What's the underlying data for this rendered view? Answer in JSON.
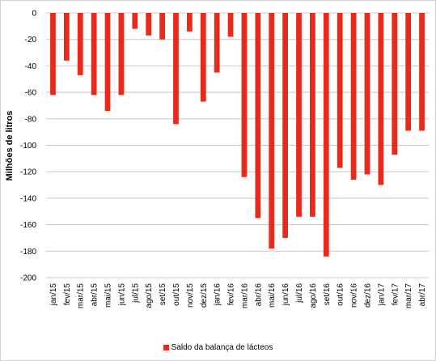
{
  "chart_data": {
    "type": "bar",
    "ylabel": "Milhões de litros",
    "xlabel": "",
    "ylim": [
      -200,
      0
    ],
    "yticks": [
      0,
      -20,
      -40,
      -60,
      -80,
      -100,
      -120,
      -140,
      -160,
      -180,
      -200
    ],
    "grid": true,
    "legend_position": "bottom",
    "bar_color": "#e8291c",
    "categories": [
      "jan/15",
      "fev/15",
      "mar/15",
      "abr/15",
      "mai/15",
      "jun/15",
      "jul/15",
      "ago/15",
      "set/15",
      "out/15",
      "nov/15",
      "dez/15",
      "jan/16",
      "fev/16",
      "mar/16",
      "abr/16",
      "mai/16",
      "jun/16",
      "jul/16",
      "ago/16",
      "set/16",
      "out/16",
      "nov/16",
      "dez/16",
      "jan/17",
      "fev/17",
      "mar/17",
      "abr/17"
    ],
    "series": [
      {
        "name": "Saldo da balança de lácteos",
        "values": [
          -62,
          -36,
          -47,
          -62,
          -74,
          -62,
          -12,
          -17,
          -20,
          -84,
          -14,
          -67,
          -45,
          -18,
          -124,
          -155,
          -178,
          -170,
          -154,
          -154,
          -184,
          -117,
          -126,
          -122,
          -130,
          -107,
          -89,
          -89
        ]
      }
    ]
  }
}
